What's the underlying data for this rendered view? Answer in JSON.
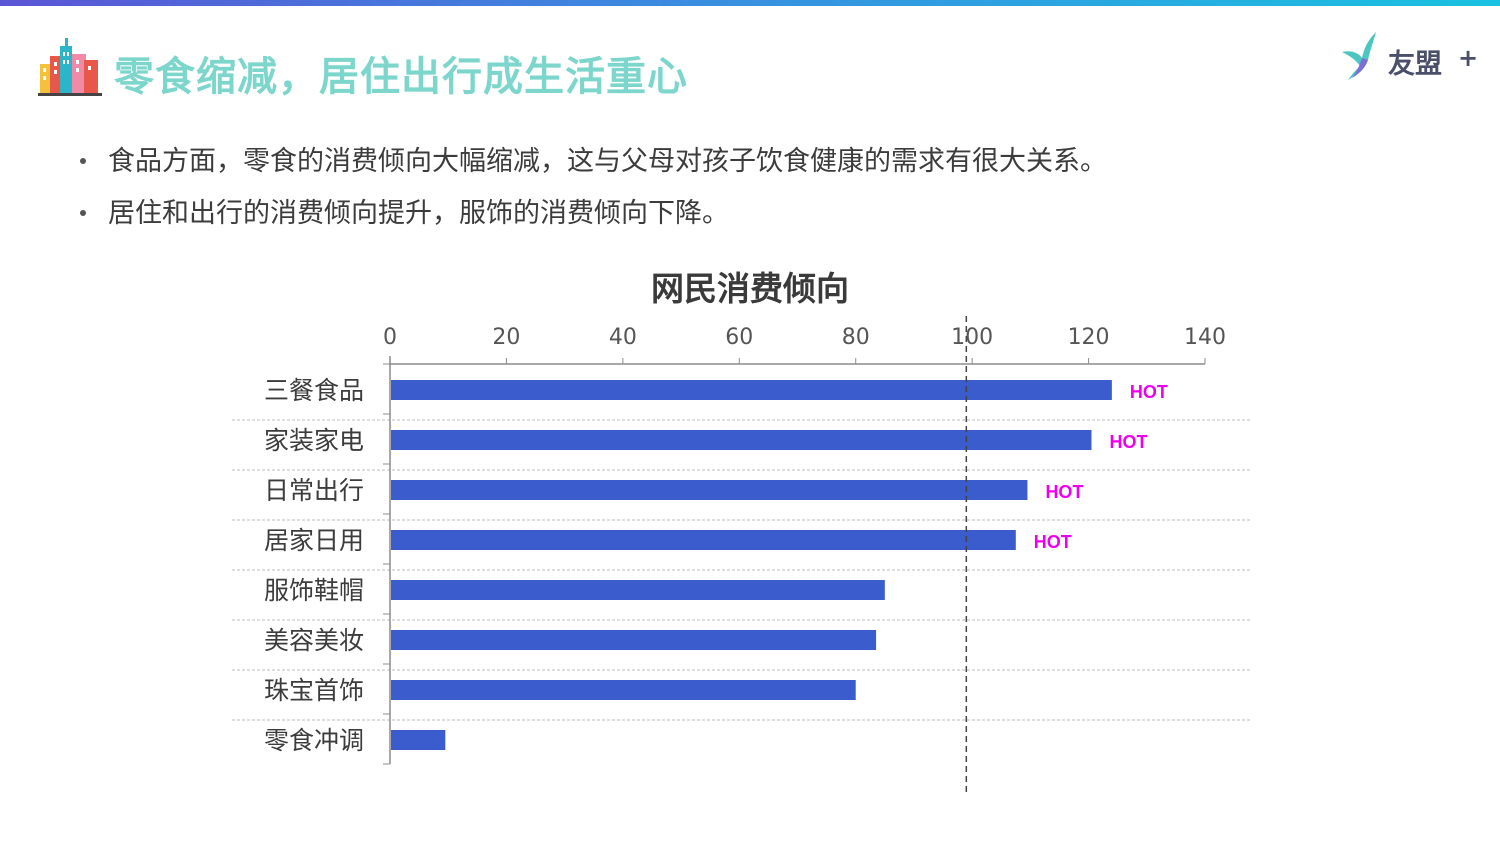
{
  "header": {
    "title": "零食缩减，居住出行成生活重心",
    "brand": "友盟",
    "brand_plus": "+"
  },
  "bullets": [
    "食品方面，零食的消费倾向大幅缩减，这与父母对孩子饮食健康的需求有很大关系。",
    "居住和出行的消费倾向提升，服饰的消费倾向下降。"
  ],
  "colors": {
    "accent_title": "#7dd6cc",
    "bar": "#3a5ccc",
    "hot": "#ee00ee"
  },
  "chart_data": {
    "type": "bar",
    "orientation": "horizontal",
    "title": "网民消费倾向",
    "categories": [
      "三餐食品",
      "家装家电",
      "日常出行",
      "居家日用",
      "服饰鞋帽",
      "美容美妆",
      "珠宝首饰",
      "零食冲调"
    ],
    "values": [
      124,
      120.5,
      109.5,
      107.5,
      85,
      83.5,
      80,
      9.5
    ],
    "annotations": [
      "HOT",
      "HOT",
      "HOT",
      "HOT",
      "",
      "",
      "",
      ""
    ],
    "reference_line": 99,
    "xlim": [
      0,
      140
    ],
    "xticks": [
      0,
      20,
      40,
      60,
      80,
      100,
      120,
      140
    ],
    "xaxis_position": "top",
    "gridlines": "dashed-horizontal"
  }
}
